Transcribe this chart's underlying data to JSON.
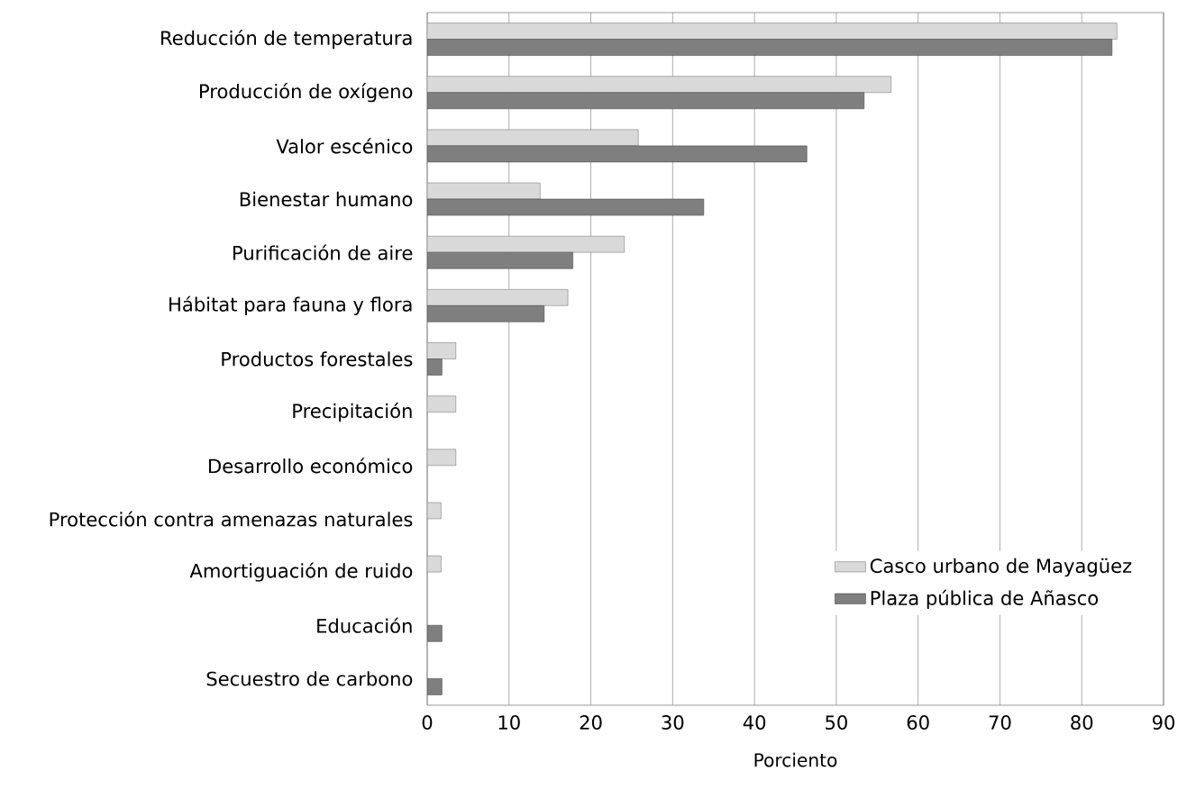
{
  "chart_data": {
    "type": "bar",
    "orientation": "horizontal",
    "xlabel": "Porciento",
    "categories": [
      "Reducción de temperatura",
      "Producción de oxígeno",
      "Valor escénico",
      "Bienestar humano",
      "Purificación de aire",
      "Hábitat para fauna y flora",
      "Productos forestales",
      "Precipitación",
      "Desarrollo económico",
      "Protección contra amenazas naturales",
      "Amortiguación de ruido",
      "Educación",
      "Secuestro de carbono"
    ],
    "series": [
      {
        "name": "Casco urbano de Mayagüez",
        "color": "#d9d9d9",
        "values": [
          84.3,
          56.7,
          25.8,
          13.8,
          24.1,
          17.2,
          3.5,
          3.5,
          3.5,
          1.7,
          1.7,
          null,
          null
        ]
      },
      {
        "name": "Plaza pública de Añasco",
        "color": "#7f7f7f",
        "values": [
          83.7,
          53.4,
          46.4,
          33.8,
          17.8,
          14.3,
          1.8,
          null,
          null,
          null,
          null,
          1.8,
          1.8
        ]
      }
    ],
    "xlim": [
      0,
      90
    ],
    "xticks": [
      0,
      10,
      20,
      30,
      40,
      50,
      60,
      70,
      80,
      90
    ],
    "grid": "x",
    "legend": "bottom right"
  }
}
